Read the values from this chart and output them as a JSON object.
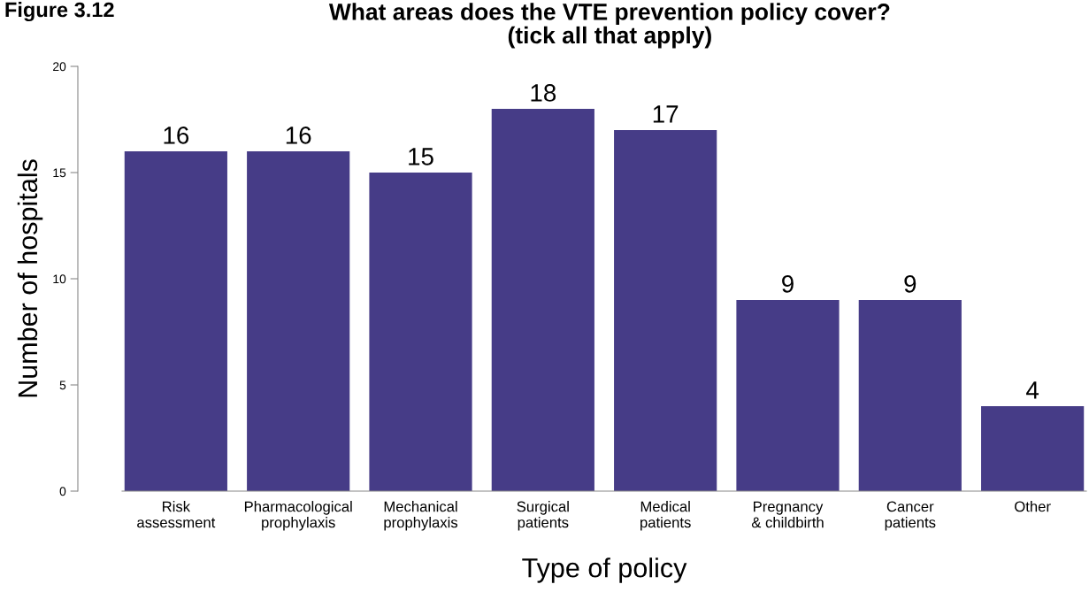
{
  "chart_data": {
    "type": "bar",
    "title": "What areas does the VTE prevention policy cover?\n(tick all that apply)",
    "xlabel": "Type of policy",
    "ylabel": "Number of hospitals",
    "categories": [
      "Risk\nassessment",
      "Pharmacological\nprophylaxis",
      "Mechanical\nprophylaxis",
      "Surgical\npatients",
      "Medical\npatients",
      "Pregnancy\n& childbirth",
      "Cancer\npatients",
      "Other"
    ],
    "values": [
      16,
      16,
      15,
      18,
      17,
      9,
      9,
      4
    ],
    "color": "#463c87",
    "ylim": [
      0,
      20
    ],
    "yticks": [
      0,
      5,
      10,
      15,
      20
    ],
    "data_labels": true,
    "grid": false,
    "legend": false,
    "annotations": [
      "Figure 3.12"
    ]
  }
}
